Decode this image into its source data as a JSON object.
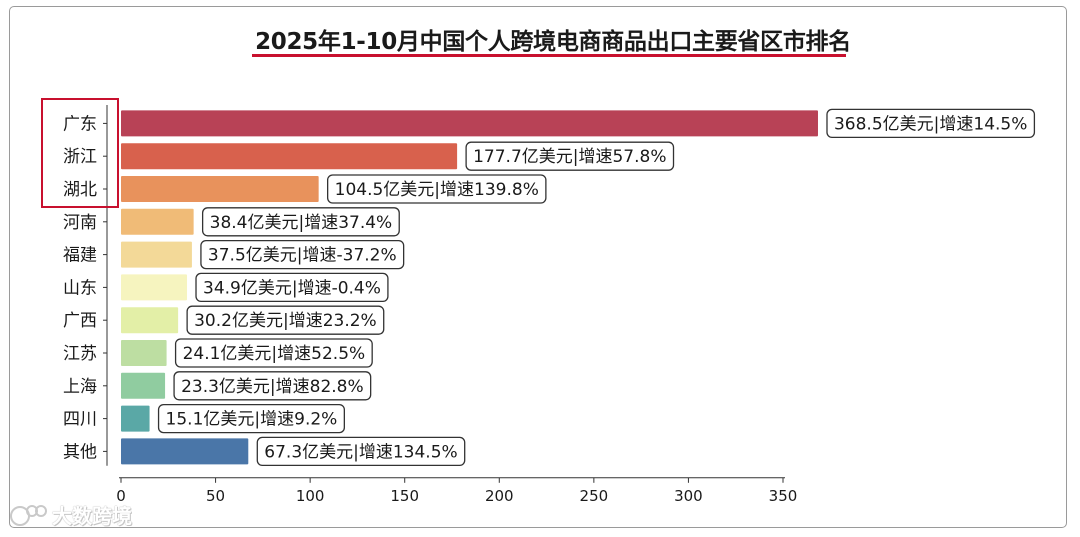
{
  "chart_data": {
    "type": "bar",
    "orientation": "horizontal",
    "title": "2025年1-10月中国个人跨境电商商品出口主要省区市排名",
    "categories": [
      "广东",
      "浙江",
      "湖北",
      "河南",
      "福建",
      "山东",
      "广西",
      "江苏",
      "上海",
      "四川",
      "其他"
    ],
    "values": [
      368.5,
      177.7,
      104.5,
      38.4,
      37.5,
      34.9,
      30.2,
      24.1,
      23.3,
      15.1,
      67.3
    ],
    "data_labels": [
      "368.5亿美元|增速14.5%",
      "177.7亿美元|增速57.8%",
      "104.5亿美元|增速139.8%",
      "38.4亿美元|增速37.4%",
      "37.5亿美元|增速-37.2%",
      "34.9亿美元|增速-0.4%",
      "30.2亿美元|增速23.2%",
      "24.1亿美元|增速52.5%",
      "23.3亿美元|增速82.8%",
      "15.1亿美元|增速9.2%",
      "67.3亿美元|增速134.5%"
    ],
    "colors": [
      "#b84256",
      "#d8614d",
      "#e8925c",
      "#f0bb77",
      "#f3d998",
      "#f6f4bf",
      "#e3efa7",
      "#bddea2",
      "#90cca0",
      "#5aa8a6",
      "#4a76a8"
    ],
    "xlim": [
      0,
      350
    ],
    "xticks": [
      0,
      50,
      100,
      150,
      200,
      250,
      300,
      350
    ],
    "xlabel": "",
    "ylabel": "",
    "grid": false,
    "legend": "none",
    "highlighted_categories": [
      "广东",
      "浙江",
      "湖北"
    ]
  },
  "watermark": "大数跨境"
}
